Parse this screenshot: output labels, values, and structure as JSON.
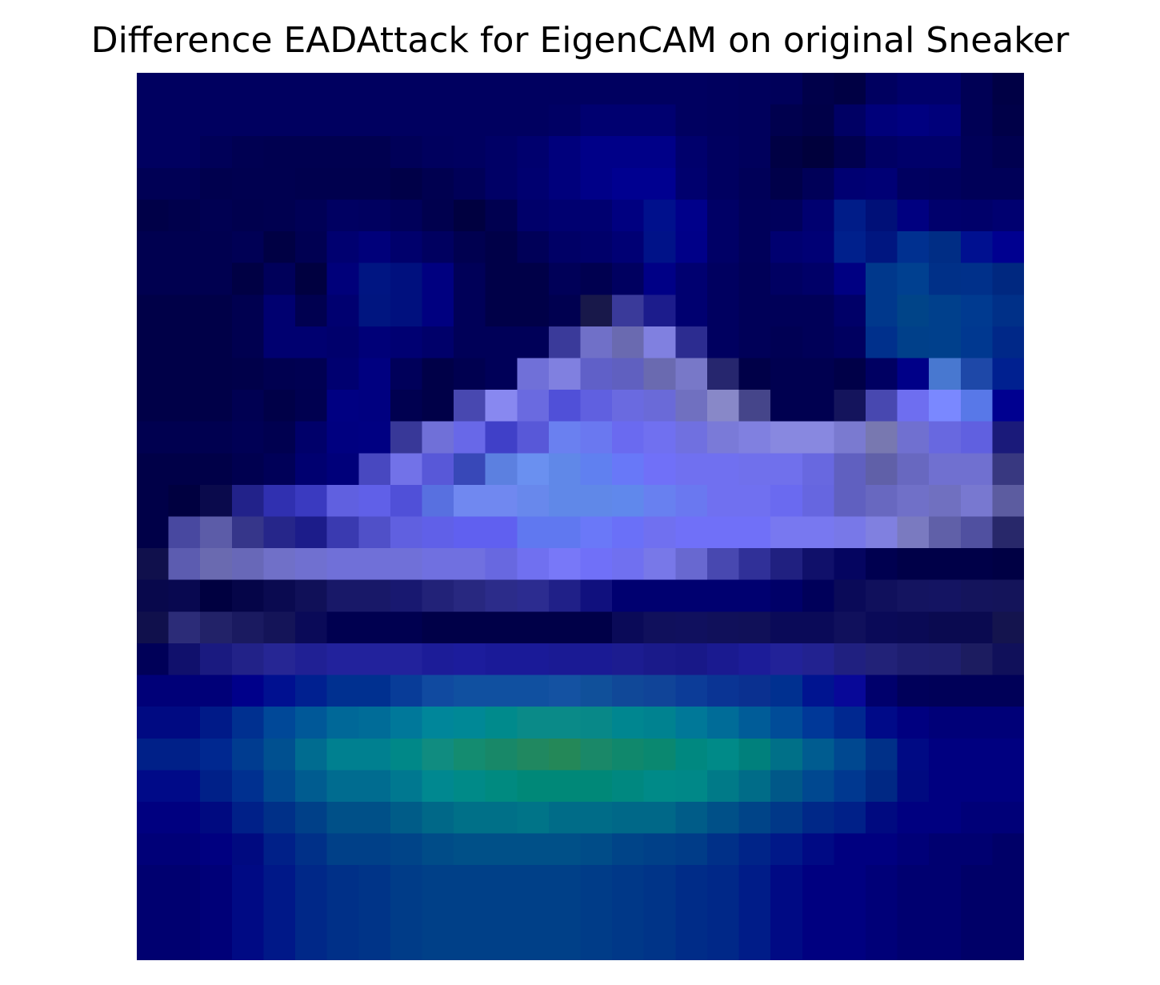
{
  "chart_data": {
    "type": "heatmap",
    "title": "Difference EADAttack for EigenCAM on original Sneaker",
    "rows": 28,
    "cols": 28,
    "axes_visible": false,
    "grid": false,
    "colorbar": false,
    "cells": [
      [
        "#000060",
        "#000060",
        "#000060",
        "#000060",
        "#000060",
        "#000060",
        "#000060",
        "#000060",
        "#000060",
        "#000060",
        "#000060",
        "#000060",
        "#000060",
        "#000060",
        "#000060",
        "#000060",
        "#000060",
        "#000060",
        "#00005e",
        "#00005c",
        "#00005a",
        "#00004a",
        "#000044",
        "#000060",
        "#00006a",
        "#00006a",
        "#000055",
        "#000045"
      ],
      [
        "#000060",
        "#000060",
        "#000060",
        "#000060",
        "#000060",
        "#000060",
        "#000060",
        "#000060",
        "#000060",
        "#000060",
        "#000060",
        "#000060",
        "#000060",
        "#000064",
        "#000070",
        "#000070",
        "#000070",
        "#000060",
        "#00005e",
        "#00005c",
        "#00004e",
        "#000048",
        "#000064",
        "#00007a",
        "#000080",
        "#00007a",
        "#000055",
        "#000048"
      ],
      [
        "#000060",
        "#000060",
        "#000058",
        "#000052",
        "#000050",
        "#000050",
        "#000050",
        "#000050",
        "#000058",
        "#00005e",
        "#000060",
        "#000066",
        "#00006e",
        "#00007c",
        "#000088",
        "#000088",
        "#000088",
        "#00006c",
        "#000060",
        "#00005c",
        "#000044",
        "#00003c",
        "#00004e",
        "#000064",
        "#00006a",
        "#00006a",
        "#000058",
        "#000050"
      ],
      [
        "#000055",
        "#000055",
        "#00004e",
        "#000050",
        "#000050",
        "#00004e",
        "#00004e",
        "#00004e",
        "#000048",
        "#000050",
        "#000058",
        "#000066",
        "#000070",
        "#00007c",
        "#000088",
        "#000090",
        "#000090",
        "#00006e",
        "#000060",
        "#000058",
        "#00004a",
        "#000058",
        "#000072",
        "#000075",
        "#000060",
        "#00005e",
        "#000058",
        "#000058"
      ],
      [
        "#000048",
        "#00004c",
        "#000052",
        "#00004e",
        "#000050",
        "#000056",
        "#000062",
        "#000060",
        "#00005a",
        "#00004e",
        "#000040",
        "#000050",
        "#00006a",
        "#000070",
        "#000070",
        "#000080",
        "#00108c",
        "#00008a",
        "#000066",
        "#00005a",
        "#00005c",
        "#000070",
        "#001c88",
        "#001078",
        "#000080",
        "#00006c",
        "#00006a",
        "#000070"
      ],
      [
        "#000050",
        "#000050",
        "#000050",
        "#000055",
        "#000044",
        "#000052",
        "#000070",
        "#00007a",
        "#00006c",
        "#000060",
        "#000050",
        "#000048",
        "#000058",
        "#000066",
        "#00006a",
        "#000074",
        "#001288",
        "#000088",
        "#000066",
        "#00005a",
        "#000070",
        "#000075",
        "#00208c",
        "#001680",
        "#003090",
        "#002d85",
        "#001090",
        "#000090"
      ],
      [
        "#000050",
        "#000050",
        "#000050",
        "#000044",
        "#00005a",
        "#000040",
        "#00007a",
        "#001582",
        "#00107e",
        "#000080",
        "#000058",
        "#000048",
        "#000048",
        "#000058",
        "#000050",
        "#000060",
        "#000086",
        "#000070",
        "#000060",
        "#000058",
        "#000062",
        "#000068",
        "#000082",
        "#00388c",
        "#004090",
        "#003088",
        "#00308a",
        "#002880"
      ],
      [
        "#000048",
        "#000048",
        "#000048",
        "#000050",
        "#000070",
        "#000050",
        "#000070",
        "#001580",
        "#00107e",
        "#000080",
        "#000058",
        "#000048",
        "#000048",
        "#000050",
        "#18184a",
        "#3a3a9a",
        "#1c1c8c",
        "#000070",
        "#000060",
        "#000058",
        "#000058",
        "#000058",
        "#000068",
        "#00388c",
        "#004488",
        "#00408c",
        "#003a90",
        "#003088"
      ],
      [
        "#000048",
        "#000048",
        "#000048",
        "#000050",
        "#000070",
        "#000070",
        "#00006c",
        "#000078",
        "#000072",
        "#00006a",
        "#000058",
        "#000058",
        "#000058",
        "#3a3a9a",
        "#7070c8",
        "#6a6ab0",
        "#8080e0",
        "#2c2c90",
        "#000060",
        "#000058",
        "#000054",
        "#000058",
        "#000060",
        "#00308c",
        "#00408a",
        "#00408c",
        "#003890",
        "#002888"
      ],
      [
        "#000048",
        "#000048",
        "#000048",
        "#00004a",
        "#000050",
        "#000052",
        "#000070",
        "#000080",
        "#00005a",
        "#000048",
        "#000050",
        "#000058",
        "#7070d8",
        "#8080e0",
        "#6060c8",
        "#6060c0",
        "#6a6ab0",
        "#7878c8",
        "#26266e",
        "#000048",
        "#000050",
        "#000050",
        "#000048",
        "#000062",
        "#000088",
        "#4878d0",
        "#1e48a8",
        "#002090"
      ],
      [
        "#000048",
        "#000048",
        "#000048",
        "#000052",
        "#000048",
        "#000050",
        "#000082",
        "#000080",
        "#000050",
        "#000048",
        "#4848b0",
        "#8888f0",
        "#6a6ae0",
        "#5050d8",
        "#6060e0",
        "#6a6ae0",
        "#6a6ad8",
        "#7070c0",
        "#8888c8",
        "#45458a",
        "#000050",
        "#000050",
        "#14145c",
        "#4848b0",
        "#6e6ef0",
        "#7a88ff",
        "#5878e8",
        "#000090"
      ],
      [
        "#000050",
        "#000050",
        "#000050",
        "#000055",
        "#000050",
        "#00006a",
        "#000080",
        "#000082",
        "#383898",
        "#7070d8",
        "#6868e8",
        "#4040c8",
        "#5858d8",
        "#6a80f0",
        "#6a78f0",
        "#6a6af0",
        "#7070f0",
        "#7070e0",
        "#7a7ad8",
        "#8080e0",
        "#8888e0",
        "#8888e0",
        "#7a7ad0",
        "#7878b0",
        "#7070d0",
        "#6868e0",
        "#6060e0",
        "#1a1a7a"
      ],
      [
        "#000048",
        "#000048",
        "#000048",
        "#000050",
        "#000058",
        "#000070",
        "#00007a",
        "#4848c0",
        "#7272e8",
        "#5858d8",
        "#3848b8",
        "#5c80e0",
        "#6a90f0",
        "#6088e8",
        "#6080f0",
        "#6878f8",
        "#7070f8",
        "#7070f0",
        "#7070f0",
        "#7070ec",
        "#7070ec",
        "#6868e0",
        "#6060c0",
        "#6060a8",
        "#6868c0",
        "#7070d0",
        "#7070d0",
        "#383880"
      ],
      [
        "#000048",
        "#000040",
        "#0a0a4c",
        "#22228a",
        "#3030b0",
        "#3a3ac0",
        "#6060e0",
        "#6060e8",
        "#5050d8",
        "#5870e0",
        "#7088f0",
        "#7088f0",
        "#6888ec",
        "#6088e8",
        "#6088e8",
        "#6088ec",
        "#6880f0",
        "#6a78f0",
        "#7070f0",
        "#7070f0",
        "#6a6af0",
        "#6666e0",
        "#6060c0",
        "#6868c0",
        "#7070c8",
        "#7070c0",
        "#7878d0",
        "#5c5ca0"
      ],
      [
        "#000048",
        "#4848a0",
        "#5c5ca8",
        "#36368a",
        "#26268a",
        "#1c1c8a",
        "#3a3ab0",
        "#5050c8",
        "#6060e0",
        "#6060e8",
        "#6060f0",
        "#6060f0",
        "#6078f0",
        "#6078f0",
        "#6a78f8",
        "#6a70f8",
        "#7070f0",
        "#7070f8",
        "#7070f8",
        "#7070f8",
        "#7878f0",
        "#7878f0",
        "#7878e8",
        "#8080e0",
        "#7a7ac0",
        "#6060a8",
        "#5050a0",
        "#28286a"
      ],
      [
        "#10104c",
        "#5c5cb0",
        "#6a6ab0",
        "#6868b8",
        "#7070c8",
        "#7070d0",
        "#7070d8",
        "#7070d8",
        "#7070d8",
        "#7070e0",
        "#7070e0",
        "#6868e0",
        "#7070f0",
        "#7878f8",
        "#7070f8",
        "#7070f0",
        "#7878e8",
        "#6868d0",
        "#4848b0",
        "#303098",
        "#202080",
        "#10106a",
        "#050560",
        "#000050",
        "#000048",
        "#000048",
        "#000048",
        "#000044"
      ],
      [
        "#08084c",
        "#080850",
        "#000040",
        "#050548",
        "#0a0a50",
        "#101058",
        "#181868",
        "#181868",
        "#181870",
        "#222278",
        "#282880",
        "#2c2c8a",
        "#2c2c90",
        "#202088",
        "#10107e",
        "#000070",
        "#000070",
        "#000070",
        "#000070",
        "#000070",
        "#000068",
        "#00005a",
        "#0a0a58",
        "#10105c",
        "#141460",
        "#141462",
        "#14145c",
        "#14145a"
      ],
      [
        "#10104c",
        "#2c2c78",
        "#222268",
        "#1a1a60",
        "#141458",
        "#0a0a58",
        "#000050",
        "#000050",
        "#000050",
        "#000048",
        "#000048",
        "#000048",
        "#000048",
        "#000048",
        "#000048",
        "#0a0a58",
        "#10105c",
        "#10105e",
        "#10105a",
        "#101058",
        "#0a0a58",
        "#0a0a58",
        "#10105c",
        "#0a0a58",
        "#0a0a55",
        "#0a0a50",
        "#0a0a50",
        "#14144e"
      ],
      [
        "#000058",
        "#10106c",
        "#1a1a80",
        "#222288",
        "#262694",
        "#202094",
        "#22229c",
        "#22229c",
        "#22229c",
        "#1c1c98",
        "#1c1c9c",
        "#1a1a98",
        "#1a1a98",
        "#1a1a94",
        "#1a1a94",
        "#1c1c90",
        "#1a1a8a",
        "#181888",
        "#1a1a90",
        "#1c1c98",
        "#222298",
        "#222290",
        "#202080",
        "#222278",
        "#1e1e70",
        "#1e1e6e",
        "#1c1c60",
        "#10105a"
      ],
      [
        "#000078",
        "#000078",
        "#000078",
        "#00008a",
        "#001090",
        "#002090",
        "#003090",
        "#003090",
        "#083c98",
        "#104aa0",
        "#1050a0",
        "#1050a0",
        "#1050a0",
        "#1452a2",
        "#10509a",
        "#104898",
        "#104498",
        "#0c3c98",
        "#0a3494",
        "#0a3090",
        "#003090",
        "#001490",
        "#080898",
        "#00006c",
        "#00005a",
        "#000058",
        "#000058",
        "#000058"
      ],
      [
        "#000a82",
        "#000a82",
        "#001a88",
        "#003090",
        "#004898",
        "#005898",
        "#006898",
        "#006c98",
        "#00789a",
        "#00869a",
        "#008896",
        "#008a8c",
        "#0a8a88",
        "#0a8a88",
        "#088888",
        "#008690",
        "#008290",
        "#007898",
        "#006c98",
        "#005c98",
        "#004c98",
        "#003898",
        "#002890",
        "#000a88",
        "#000080",
        "#000078",
        "#000078",
        "#000078"
      ],
      [
        "#002088",
        "#002088",
        "#002890",
        "#003c90",
        "#005090",
        "#006c90",
        "#008090",
        "#008090",
        "#008888",
        "#108c80",
        "#148c70",
        "#188868",
        "#208860",
        "#248858",
        "#1a8868",
        "#10886c",
        "#0a8870",
        "#008880",
        "#008a88",
        "#00807c",
        "#007088",
        "#005c90",
        "#004890",
        "#003088",
        "#000a84",
        "#000080",
        "#000080",
        "#000080"
      ],
      [
        "#000a88",
        "#000a88",
        "#002088",
        "#003090",
        "#004890",
        "#005c90",
        "#006c90",
        "#006c90",
        "#007890",
        "#008890",
        "#008a88",
        "#008a80",
        "#008878",
        "#008878",
        "#008878",
        "#008880",
        "#008a88",
        "#008888",
        "#007a88",
        "#006c88",
        "#005888",
        "#004890",
        "#003890",
        "#002884",
        "#000a80",
        "#000080",
        "#000080",
        "#000080"
      ],
      [
        "#000080",
        "#000080",
        "#000a80",
        "#002088",
        "#003088",
        "#004088",
        "#005088",
        "#005088",
        "#005c88",
        "#006888",
        "#007088",
        "#007088",
        "#007488",
        "#006c88",
        "#006c88",
        "#006888",
        "#006888",
        "#005c88",
        "#005088",
        "#004488",
        "#003888",
        "#002888",
        "#002088",
        "#000a80",
        "#000080",
        "#000080",
        "#000078",
        "#000078"
      ],
      [
        "#000078",
        "#000078",
        "#000080",
        "#000a80",
        "#002088",
        "#003088",
        "#004088",
        "#004088",
        "#004488",
        "#004c88",
        "#005088",
        "#005088",
        "#005088",
        "#005088",
        "#004c88",
        "#004488",
        "#004088",
        "#003c88",
        "#003088",
        "#002488",
        "#001888",
        "#000a84",
        "#000080",
        "#000080",
        "#000078",
        "#000070",
        "#000070",
        "#000068"
      ],
      [
        "#000070",
        "#000070",
        "#000078",
        "#000a84",
        "#001888",
        "#002888",
        "#003088",
        "#003488",
        "#003c88",
        "#004088",
        "#004088",
        "#004088",
        "#004088",
        "#004088",
        "#003c88",
        "#003888",
        "#003488",
        "#002c88",
        "#002888",
        "#001c88",
        "#000a84",
        "#000080",
        "#000080",
        "#000078",
        "#000070",
        "#000070",
        "#000068",
        "#000068"
      ],
      [
        "#000070",
        "#000070",
        "#000078",
        "#000a84",
        "#001888",
        "#002888",
        "#003088",
        "#003488",
        "#003c88",
        "#004088",
        "#004088",
        "#004088",
        "#004088",
        "#004088",
        "#003c88",
        "#003888",
        "#003488",
        "#002c88",
        "#002888",
        "#001c88",
        "#000a84",
        "#000080",
        "#000080",
        "#000078",
        "#000070",
        "#000070",
        "#000068",
        "#000068"
      ],
      [
        "#000070",
        "#000070",
        "#000078",
        "#000a84",
        "#001888",
        "#002888",
        "#003088",
        "#003488",
        "#003c88",
        "#004088",
        "#004088",
        "#004088",
        "#004088",
        "#004088",
        "#003c88",
        "#003888",
        "#003488",
        "#002c88",
        "#002888",
        "#001c88",
        "#000a84",
        "#000080",
        "#000080",
        "#000078",
        "#000070",
        "#000070",
        "#000068",
        "#000068"
      ]
    ]
  }
}
